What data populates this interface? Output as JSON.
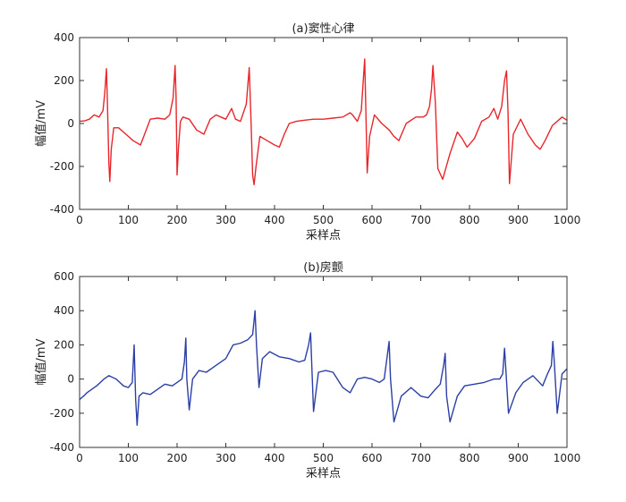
{
  "chart_data": [
    {
      "type": "line",
      "title": "(a)窦性心律",
      "xlabel": "采样点",
      "ylabel": "幅值/mV",
      "xlim": [
        0,
        1000
      ],
      "ylim": [
        -400,
        400
      ],
      "xticks": [
        0,
        100,
        200,
        300,
        400,
        500,
        600,
        700,
        800,
        900,
        1000
      ],
      "yticks": [
        -400,
        -200,
        0,
        200,
        400
      ],
      "grid": false,
      "series": [
        {
          "color": "#e8262b",
          "x": [
            0,
            10,
            20,
            30,
            40,
            48,
            52,
            55,
            57,
            60,
            62,
            65,
            70,
            80,
            95,
            110,
            125,
            135,
            145,
            160,
            175,
            185,
            192,
            196,
            198,
            200,
            203,
            207,
            212,
            225,
            240,
            255,
            268,
            280,
            290,
            300,
            312,
            320,
            330,
            342,
            348,
            352,
            355,
            358,
            362,
            370,
            385,
            400,
            410,
            420,
            430,
            445,
            460,
            480,
            500,
            520,
            540,
            555,
            560,
            570,
            578,
            582,
            585,
            587,
            590,
            595,
            605,
            620,
            635,
            645,
            655,
            670,
            690,
            705,
            712,
            718,
            722,
            725,
            730,
            735,
            745,
            760,
            775,
            785,
            795,
            810,
            825,
            840,
            850,
            858,
            866,
            872,
            876,
            879,
            882,
            890,
            905,
            920,
            935,
            945,
            955,
            970,
            990,
            1000
          ],
          "y": [
            10,
            12,
            20,
            40,
            30,
            60,
            150,
            255,
            100,
            -180,
            -270,
            -120,
            -20,
            -20,
            -50,
            -80,
            -100,
            -40,
            20,
            25,
            20,
            40,
            120,
            270,
            120,
            -240,
            -110,
            10,
            30,
            20,
            -30,
            -50,
            20,
            40,
            30,
            20,
            70,
            20,
            10,
            90,
            260,
            0,
            -240,
            -285,
            -200,
            -60,
            -80,
            -100,
            -110,
            -50,
            0,
            10,
            15,
            20,
            20,
            25,
            30,
            50,
            40,
            10,
            60,
            200,
            300,
            100,
            -230,
            -60,
            40,
            0,
            -30,
            -60,
            -80,
            0,
            30,
            30,
            40,
            80,
            160,
            270,
            100,
            -210,
            -260,
            -140,
            -40,
            -70,
            -110,
            -70,
            10,
            30,
            70,
            20,
            80,
            200,
            245,
            50,
            -280,
            -50,
            20,
            -50,
            -100,
            -120,
            -80,
            -10,
            30,
            15
          ]
        }
      ]
    },
    {
      "type": "line",
      "title": "(b)房颤",
      "xlabel": "采样点",
      "ylabel": "幅值/mV",
      "xlim": [
        0,
        1000
      ],
      "ylim": [
        -400,
        600
      ],
      "xticks": [
        0,
        100,
        200,
        300,
        400,
        500,
        600,
        700,
        800,
        900,
        1000
      ],
      "yticks": [
        -400,
        -200,
        0,
        200,
        400,
        600
      ],
      "grid": false,
      "series": [
        {
          "color": "#2b3fa6",
          "x": [
            0,
            8,
            15,
            25,
            35,
            50,
            60,
            75,
            90,
            100,
            108,
            112,
            115,
            118,
            122,
            130,
            145,
            160,
            175,
            190,
            200,
            210,
            215,
            218,
            220,
            225,
            232,
            245,
            260,
            280,
            300,
            315,
            330,
            345,
            355,
            360,
            363,
            368,
            375,
            390,
            410,
            430,
            450,
            462,
            470,
            474,
            477,
            480,
            490,
            505,
            520,
            540,
            555,
            570,
            585,
            600,
            615,
            625,
            632,
            635,
            638,
            645,
            660,
            680,
            700,
            715,
            730,
            740,
            747,
            750,
            753,
            760,
            775,
            790,
            810,
            830,
            850,
            862,
            868,
            872,
            880,
            895,
            910,
            930,
            950,
            960,
            968,
            971,
            974,
            980,
            990,
            1000
          ],
          "y": [
            -120,
            -100,
            -80,
            -60,
            -40,
            0,
            20,
            0,
            -40,
            -50,
            -20,
            200,
            -120,
            -270,
            -100,
            -80,
            -90,
            -60,
            -30,
            -40,
            -20,
            0,
            100,
            240,
            0,
            -180,
            0,
            50,
            40,
            80,
            120,
            200,
            210,
            230,
            260,
            400,
            200,
            -50,
            120,
            160,
            130,
            120,
            100,
            110,
            200,
            270,
            30,
            -190,
            40,
            50,
            40,
            -50,
            -80,
            0,
            10,
            0,
            -20,
            0,
            150,
            220,
            0,
            -250,
            -100,
            -50,
            -100,
            -110,
            -60,
            -30,
            80,
            150,
            -100,
            -250,
            -100,
            -40,
            -30,
            -20,
            0,
            0,
            30,
            180,
            -200,
            -80,
            -20,
            20,
            -40,
            30,
            80,
            220,
            100,
            -200,
            30,
            60
          ]
        }
      ]
    }
  ]
}
